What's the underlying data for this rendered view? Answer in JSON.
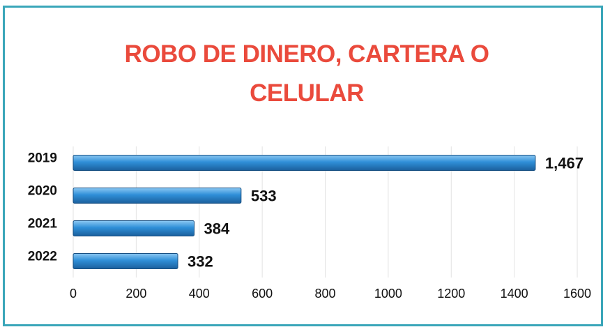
{
  "chart_data": {
    "type": "hbar",
    "title": "ROBO DE DINERO, CARTERA O CELULAR",
    "categories": [
      "2019",
      "2020",
      "2021",
      "2022"
    ],
    "values": [
      1467,
      533,
      384,
      332
    ],
    "value_labels": [
      "1,467",
      "533",
      "384",
      "332"
    ],
    "color": "#2f8fd8",
    "xlim": [
      0,
      1600
    ],
    "xticks": [
      0,
      200,
      400,
      600,
      800,
      1000,
      1200,
      1400,
      1600
    ],
    "grid": true
  }
}
